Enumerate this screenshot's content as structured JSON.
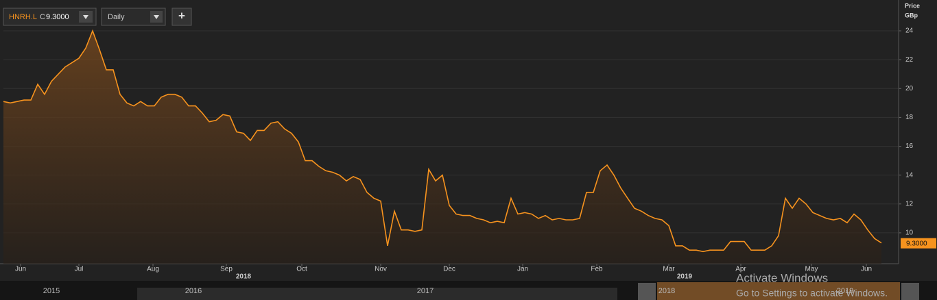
{
  "toolbar": {
    "symbol": "HNRH.L",
    "close_prefix": "C",
    "close_value": "9.3000",
    "interval": "Daily",
    "add_button": "+"
  },
  "chart_data": {
    "type": "line",
    "y_axis_label": "Price",
    "y_axis_unit": "GBp",
    "color": "#f7931e",
    "values": [
      19.1,
      19.0,
      19.1,
      19.2,
      19.2,
      20.3,
      19.6,
      20.5,
      21.0,
      21.5,
      21.8,
      22.1,
      22.8,
      24.0,
      22.7,
      21.3,
      21.3,
      19.6,
      19.0,
      18.8,
      19.1,
      18.8,
      18.8,
      19.4,
      19.6,
      19.6,
      19.4,
      18.8,
      18.8,
      18.3,
      17.7,
      17.8,
      18.2,
      18.1,
      17.0,
      16.9,
      16.4,
      17.1,
      17.1,
      17.6,
      17.7,
      17.2,
      16.9,
      16.3,
      15.0,
      15.0,
      14.6,
      14.3,
      14.2,
      14.0,
      13.6,
      13.9,
      13.7,
      12.8,
      12.4,
      12.2,
      9.1,
      11.5,
      10.2,
      10.2,
      10.1,
      10.2,
      14.4,
      13.6,
      14.0,
      11.9,
      11.3,
      11.2,
      11.2,
      11.0,
      10.9,
      10.7,
      10.8,
      10.7,
      12.4,
      11.3,
      11.4,
      11.3,
      11.0,
      11.2,
      10.9,
      11.0,
      10.9,
      10.9,
      11.0,
      12.8,
      12.8,
      14.3,
      14.7,
      14.0,
      13.1,
      12.4,
      11.7,
      11.5,
      11.2,
      11.0,
      10.9,
      10.5,
      9.1,
      9.1,
      8.8,
      8.8,
      8.7,
      8.8,
      8.8,
      8.8,
      9.4,
      9.4,
      9.4,
      8.8,
      8.8,
      8.8,
      9.1,
      9.8,
      12.4,
      11.7,
      12.4,
      12.0,
      11.4,
      11.2,
      11.0,
      10.9,
      11.0,
      10.7,
      11.3,
      10.9,
      10.2,
      9.6,
      9.3
    ],
    "last_value_label": "9.3000",
    "xlim": [
      0,
      130.5
    ],
    "xticks": [
      {
        "value": 2.5,
        "label": "Jun"
      },
      {
        "value": 11,
        "label": "Jul"
      },
      {
        "value": 21.8,
        "label": "Aug"
      },
      {
        "value": 32.5,
        "label": "Sep"
      },
      {
        "value": 43.5,
        "label": "Oct"
      },
      {
        "value": 55,
        "label": "Nov"
      },
      {
        "value": 65,
        "label": "Dec"
      },
      {
        "value": 75.7,
        "label": "Jan"
      },
      {
        "value": 86.5,
        "label": "Feb"
      },
      {
        "value": 97,
        "label": "Mar"
      },
      {
        "value": 107.5,
        "label": "Apr"
      },
      {
        "value": 117.8,
        "label": "May"
      },
      {
        "value": 125.8,
        "label": "Jun"
      }
    ],
    "year_labels": [
      {
        "value": 35,
        "label": "2018"
      },
      {
        "value": 99.3,
        "label": "2019"
      }
    ],
    "ylim": [
      7.86,
      25.9
    ],
    "yticks": [
      10,
      12,
      14,
      16,
      18,
      20,
      22,
      24
    ],
    "grid": true
  },
  "navigator": {
    "years": [
      "2015",
      "2016",
      "2017",
      "2018",
      "2019"
    ]
  },
  "watermark": {
    "title": "Activate Windows",
    "subtitle": "Go to Settings to activate Windows."
  }
}
